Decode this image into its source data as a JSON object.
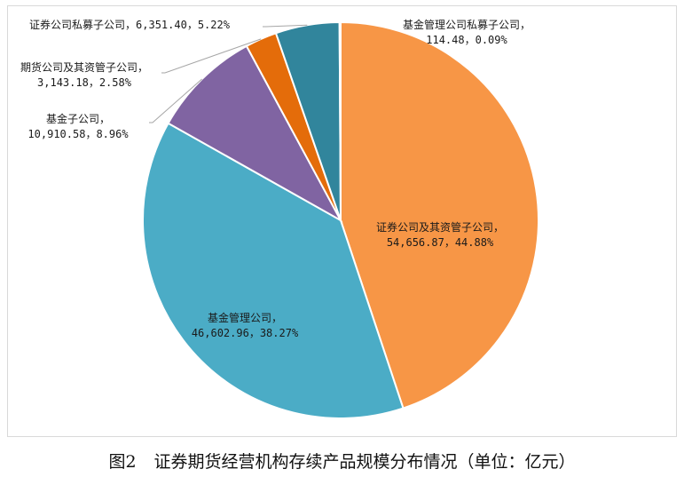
{
  "figure": {
    "label": "图2",
    "title": "证券期货经营机构存续产品规模分布情况（单位：亿元）"
  },
  "chart_data": {
    "type": "pie",
    "unit": "亿元",
    "start_angle_deg": 0,
    "direction": "clockwise",
    "slices": [
      {
        "label": "证券公司及其资管子公司",
        "value": 54656.87,
        "percent": 44.88,
        "value_text": "54,656.87",
        "percent_text": "44.88%",
        "color": "#f79646"
      },
      {
        "label": "基金管理公司",
        "value": 46602.96,
        "percent": 38.27,
        "value_text": "46,602.96",
        "percent_text": "38.27%",
        "color": "#4bacc6"
      },
      {
        "label": "基金子公司",
        "value": 10910.58,
        "percent": 8.96,
        "value_text": "10,910.58",
        "percent_text": "8.96%",
        "color": "#8064a2"
      },
      {
        "label": "期货公司及其资管子公司",
        "value": 3143.18,
        "percent": 2.58,
        "value_text": "3,143.18",
        "percent_text": "2.58%",
        "color": "#e46c0a"
      },
      {
        "label": "证券公司私募子公司",
        "value": 6351.4,
        "percent": 5.22,
        "value_text": "6,351.40",
        "percent_text": "5.22%",
        "color": "#31859c"
      },
      {
        "label": "基金管理公司私募子公司",
        "value": 114.48,
        "percent": 0.09,
        "value_text": "114.48",
        "percent_text": "0.09%",
        "color": "#c0504d"
      }
    ]
  }
}
